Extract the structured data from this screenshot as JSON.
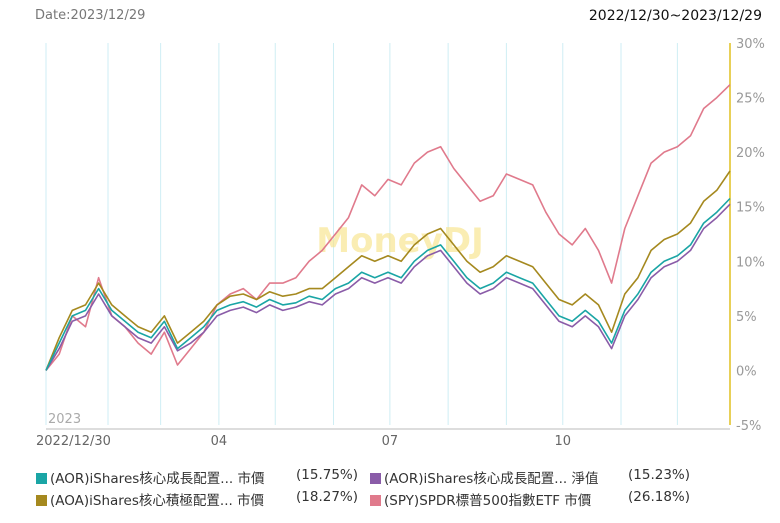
{
  "header": {
    "date_label": "Date:2023/12/29",
    "range_label": "2022/12/30~2023/12/29"
  },
  "watermark": "MoneyDJ",
  "colors": {
    "aor_price": "#1aa5a5",
    "aor_nav": "#8a5ca8",
    "aoa_price": "#a5891f",
    "spy_price": "#e07a8c",
    "axis": "#e0c020",
    "grid": "#cfeef4"
  },
  "chart_data": {
    "type": "line",
    "title": "",
    "year_label": "2023",
    "x_tick_labels": [
      "2022/12/30",
      "04",
      "07",
      "10"
    ],
    "x_tick_dates": [
      "2022-12-30",
      "2023-04-01",
      "2023-07-01",
      "2023-10-01"
    ],
    "x_range": [
      "2022-12-30",
      "2023-12-29"
    ],
    "y_tick_labels": [
      "30%",
      "25%",
      "20%",
      "15%",
      "10%",
      "5%",
      "0%",
      "-5%"
    ],
    "ylim": [
      -5,
      30
    ],
    "y_unit": "%",
    "grid": true,
    "x": [
      "2022-12-30",
      "2023-01-06",
      "2023-01-13",
      "2023-01-20",
      "2023-01-27",
      "2023-02-03",
      "2023-02-10",
      "2023-02-17",
      "2023-02-24",
      "2023-03-03",
      "2023-03-10",
      "2023-03-17",
      "2023-03-24",
      "2023-03-31",
      "2023-04-07",
      "2023-04-14",
      "2023-04-21",
      "2023-04-28",
      "2023-05-05",
      "2023-05-12",
      "2023-05-19",
      "2023-05-26",
      "2023-06-02",
      "2023-06-09",
      "2023-06-16",
      "2023-06-23",
      "2023-06-30",
      "2023-07-07",
      "2023-07-14",
      "2023-07-21",
      "2023-07-28",
      "2023-08-04",
      "2023-08-11",
      "2023-08-18",
      "2023-08-25",
      "2023-09-01",
      "2023-09-08",
      "2023-09-15",
      "2023-09-22",
      "2023-09-29",
      "2023-10-06",
      "2023-10-13",
      "2023-10-20",
      "2023-10-27",
      "2023-11-03",
      "2023-11-10",
      "2023-11-17",
      "2023-11-24",
      "2023-12-01",
      "2023-12-08",
      "2023-12-15",
      "2023-12-22",
      "2023-12-29"
    ],
    "series": [
      {
        "name": "(AOR)iShares核心成長配置... 市價",
        "color_key": "aor_price",
        "values": [
          0,
          2.5,
          5.0,
          5.5,
          7.5,
          5.5,
          4.5,
          3.5,
          3.0,
          4.5,
          2.0,
          3.0,
          4.0,
          5.5,
          6.0,
          6.3,
          5.8,
          6.5,
          6.0,
          6.2,
          6.8,
          6.5,
          7.5,
          8.0,
          9.0,
          8.5,
          9.0,
          8.5,
          10.0,
          11.0,
          11.5,
          10.0,
          8.5,
          7.5,
          8.0,
          9.0,
          8.5,
          8.0,
          6.5,
          5.0,
          4.5,
          5.5,
          4.5,
          2.5,
          5.5,
          7.0,
          9.0,
          10.0,
          10.5,
          11.5,
          13.5,
          14.5,
          15.75
        ]
      },
      {
        "name": "(AOR)iShares核心成長配置... 淨值",
        "color_key": "aor_nav",
        "values": [
          0,
          2.0,
          4.5,
          5.0,
          7.0,
          5.0,
          4.0,
          3.0,
          2.5,
          4.0,
          1.8,
          2.5,
          3.5,
          5.0,
          5.5,
          5.8,
          5.3,
          6.0,
          5.5,
          5.8,
          6.3,
          6.0,
          7.0,
          7.5,
          8.5,
          8.0,
          8.5,
          8.0,
          9.5,
          10.5,
          11.0,
          9.5,
          8.0,
          7.0,
          7.5,
          8.5,
          8.0,
          7.5,
          6.0,
          4.5,
          4.0,
          5.0,
          4.0,
          2.0,
          5.0,
          6.5,
          8.5,
          9.5,
          10.0,
          11.0,
          13.0,
          14.0,
          15.23
        ]
      },
      {
        "name": "(AOA)iShares核心積極配置... 市價",
        "color_key": "aoa_price",
        "values": [
          0,
          3.0,
          5.5,
          6.0,
          8.0,
          6.0,
          5.0,
          4.0,
          3.5,
          5.0,
          2.5,
          3.5,
          4.5,
          6.0,
          6.8,
          7.0,
          6.5,
          7.2,
          6.8,
          7.0,
          7.5,
          7.5,
          8.5,
          9.5,
          10.5,
          10.0,
          10.5,
          10.0,
          11.5,
          12.5,
          13.0,
          11.5,
          10.0,
          9.0,
          9.5,
          10.5,
          10.0,
          9.5,
          8.0,
          6.5,
          6.0,
          7.0,
          6.0,
          3.5,
          7.0,
          8.5,
          11.0,
          12.0,
          12.5,
          13.5,
          15.5,
          16.5,
          18.27
        ]
      },
      {
        "name": "(SPY)SPDR標普500指數ETF 市價",
        "color_key": "spy_price",
        "values": [
          0,
          1.5,
          5.0,
          4.0,
          8.5,
          5.0,
          4.0,
          2.5,
          1.5,
          3.5,
          0.5,
          2.0,
          3.5,
          6.0,
          7.0,
          7.5,
          6.5,
          8.0,
          8.0,
          8.5,
          10.0,
          11.0,
          12.5,
          14.0,
          17.0,
          16.0,
          17.5,
          17.0,
          19.0,
          20.0,
          20.5,
          18.5,
          17.0,
          15.5,
          16.0,
          18.0,
          17.5,
          17.0,
          14.5,
          12.5,
          11.5,
          13.0,
          11.0,
          8.0,
          13.0,
          16.0,
          19.0,
          20.0,
          20.5,
          21.5,
          24.0,
          25.0,
          26.18
        ]
      }
    ]
  },
  "legend": [
    {
      "label": "(AOR)iShares核心成長配置... 市價",
      "value": "(15.75%)",
      "color_key": "aor_price"
    },
    {
      "label": "(AOR)iShares核心成長配置... 淨值",
      "value": "(15.23%)",
      "color_key": "aor_nav"
    },
    {
      "label": "(AOA)iShares核心積極配置... 市價",
      "value": "(18.27%)",
      "color_key": "aoa_price"
    },
    {
      "label": "(SPY)SPDR標普500指數ETF 市價",
      "value": "(26.18%)",
      "color_key": "spy_price"
    }
  ]
}
